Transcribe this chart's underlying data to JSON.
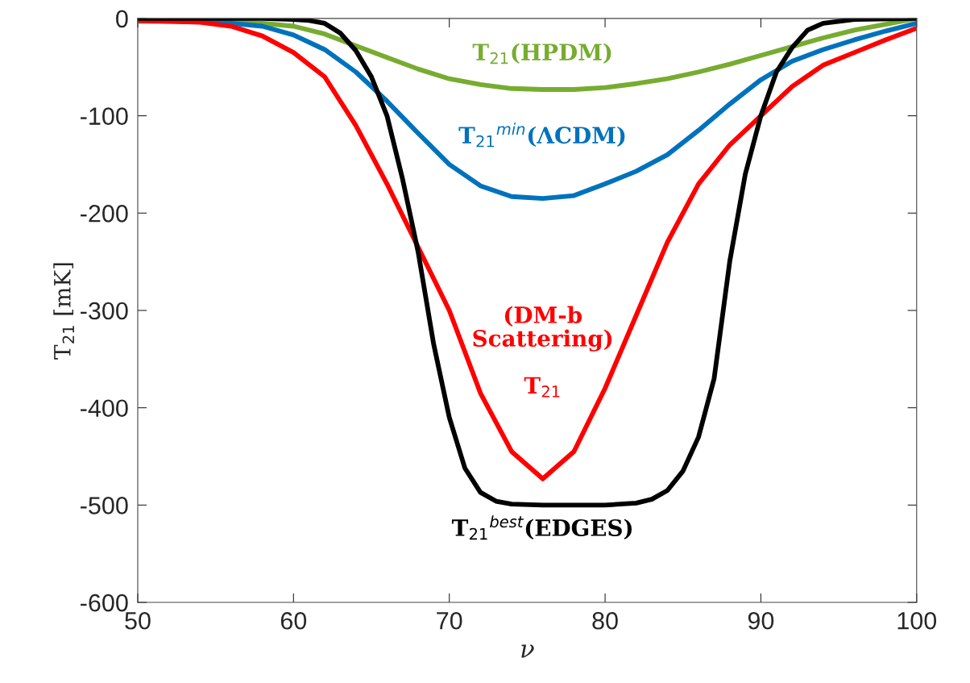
{
  "chart_data": {
    "type": "line",
    "xlabel": "ν",
    "ylabel": "T$_{21}$ [mK]",
    "xlim": [
      50,
      100
    ],
    "ylim": [
      -600,
      0
    ],
    "xticks": [
      50,
      60,
      70,
      80,
      90,
      100
    ],
    "yticks": [
      -600,
      -500,
      -400,
      -300,
      -200,
      -100,
      0
    ],
    "grid": false,
    "legend": false,
    "marker": "none",
    "line_style": "solid",
    "series": [
      {
        "name": "T$_{21}$(HPDM)",
        "color": "#77ac30",
        "x": [
          50,
          55,
          58,
          60,
          62,
          64,
          66,
          68,
          70,
          72,
          74,
          76,
          78,
          80,
          82,
          84,
          86,
          88,
          90,
          92,
          94,
          96,
          98,
          100
        ],
        "values": [
          -3,
          -3,
          -5,
          -8,
          -16,
          -28,
          -40,
          -52,
          -62,
          -68,
          -72,
          -73,
          -73,
          -71,
          -67,
          -62,
          -55,
          -47,
          -38,
          -29,
          -20,
          -12,
          -6,
          0
        ]
      },
      {
        "name": "T$_{21}$$^{min}$(ΛCDM)",
        "color": "#0072bd",
        "x": [
          50,
          54,
          56,
          58,
          60,
          62,
          64,
          66,
          68,
          70,
          72,
          74,
          76,
          78,
          80,
          82,
          84,
          86,
          88,
          90,
          92,
          94,
          96,
          98,
          100
        ],
        "values": [
          -2,
          -3,
          -5,
          -8,
          -17,
          -32,
          -55,
          -85,
          -118,
          -150,
          -172,
          -183,
          -185,
          -182,
          -170,
          -157,
          -140,
          -115,
          -88,
          -63,
          -44,
          -32,
          -22,
          -13,
          -5
        ]
      },
      {
        "name": "(DM-b\nScattering)\n\nT$_{21}$",
        "color": "#ff0000",
        "x": [
          50,
          54,
          56,
          58,
          60,
          62,
          64,
          66,
          68,
          70,
          72,
          74,
          76,
          78,
          80,
          82,
          84,
          86,
          88,
          90,
          92,
          94,
          96,
          98,
          100
        ],
        "values": [
          -2,
          -4,
          -8,
          -18,
          -35,
          -60,
          -110,
          -170,
          -235,
          -300,
          -385,
          -445,
          -473,
          -445,
          -380,
          -305,
          -230,
          -170,
          -130,
          -100,
          -70,
          -48,
          -35,
          -22,
          -10
        ]
      },
      {
        "name": "T$_{21}$$^{best}$(EDGES)",
        "color": "#000000",
        "x": [
          50,
          58,
          60,
          61,
          62,
          63,
          64,
          65,
          66,
          67,
          68,
          69,
          70,
          71,
          72,
          73,
          74,
          76,
          80,
          82,
          83,
          84,
          85,
          86,
          87,
          88,
          89,
          90,
          91,
          92,
          93,
          94,
          96,
          100
        ],
        "values": [
          0,
          0,
          -1,
          -2,
          -5,
          -15,
          -33,
          -60,
          -100,
          -165,
          -240,
          -335,
          -410,
          -462,
          -487,
          -496,
          -499,
          -500,
          -500,
          -498,
          -494,
          -485,
          -465,
          -430,
          -370,
          -250,
          -160,
          -100,
          -55,
          -30,
          -12,
          -5,
          -1,
          0
        ]
      }
    ]
  }
}
